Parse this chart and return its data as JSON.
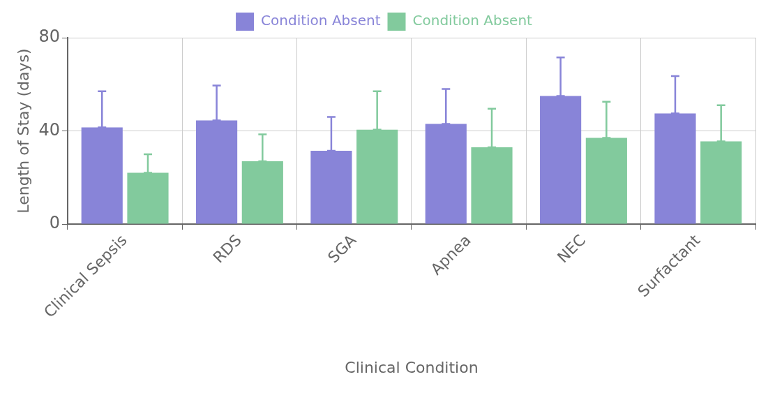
{
  "chart_data": {
    "type": "bar",
    "xlabel": "Clinical Condition",
    "ylabel": "Length of Stay (days)",
    "categories": [
      "Clinical Sepsis",
      "RDS",
      "SGA",
      "Apnea",
      "NEC",
      "Surfactant"
    ],
    "series": [
      {
        "name": "Condition Absent",
        "color": "#8884d8",
        "values": [
          41.5,
          44.5,
          31.5,
          43,
          55,
          47.5
        ],
        "errors": [
          [
            41.5,
            57
          ],
          [
            44.5,
            59.5
          ],
          [
            31.5,
            46
          ],
          [
            43,
            58
          ],
          [
            55,
            71.5
          ],
          [
            47.5,
            63.5
          ]
        ]
      },
      {
        "name": "Condition Absent",
        "color": "#82ca9d",
        "values": [
          22,
          27,
          40.5,
          33,
          37,
          35.5
        ],
        "errors": [
          [
            22,
            30
          ],
          [
            27,
            38.5
          ],
          [
            40.5,
            57
          ],
          [
            33,
            49.5
          ],
          [
            37,
            52.5
          ],
          [
            35.5,
            51
          ]
        ]
      }
    ],
    "ylim": [
      0,
      80
    ],
    "yticks": [
      0,
      40,
      80
    ],
    "grid": true,
    "legend": "top"
  }
}
